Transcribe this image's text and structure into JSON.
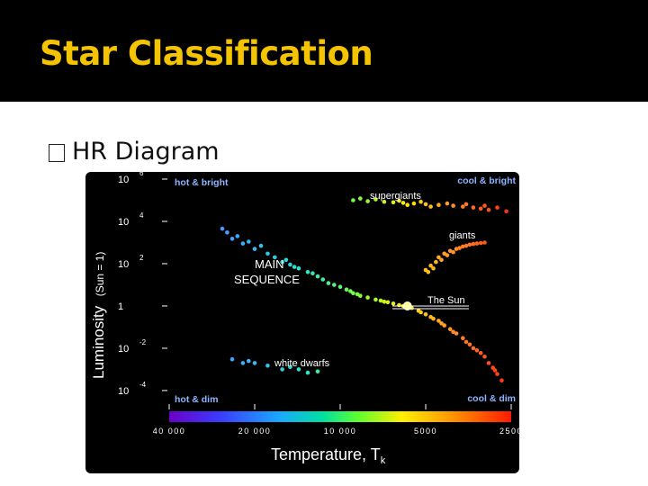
{
  "slide": {
    "title": "Star Classification",
    "bullet": "HR Diagram"
  },
  "colors": {
    "title_bar": "#000000",
    "title_text": "#f5c400",
    "chart_bg": "#000000",
    "corner_label": "#8fb4ff"
  },
  "chart_data": {
    "type": "scatter",
    "xlabel": "Temperature, T",
    "xlabel_sub": "k",
    "ylabel": "Luminosity",
    "ylabel_note": "(Sun = 1)",
    "x_scale": "log-reversed",
    "y_scale": "log",
    "xlim": [
      40000,
      2500
    ],
    "ylim": [
      5e-05,
      1000000
    ],
    "x_ticks": [
      {
        "value": 40000,
        "label": "40 000"
      },
      {
        "value": 20000,
        "label": "20 000"
      },
      {
        "value": 10000,
        "label": "10 000"
      },
      {
        "value": 5000,
        "label": "5000"
      },
      {
        "value": 2500,
        "label": "2500"
      }
    ],
    "y_ticks": [
      {
        "value": 1000000,
        "base": "10",
        "exp": "6"
      },
      {
        "value": 10000,
        "base": "10",
        "exp": "4"
      },
      {
        "value": 100,
        "base": "10",
        "exp": "2"
      },
      {
        "value": 1,
        "base": "1",
        "exp": ""
      },
      {
        "value": 0.01,
        "base": "10",
        "exp": "-2"
      },
      {
        "value": 0.0001,
        "base": "10",
        "exp": "-4"
      }
    ],
    "corner_labels": {
      "top_left": "hot & bright",
      "top_right": "cool & bright",
      "bottom_left": "hot & dim",
      "bottom_right": "cool & dim"
    },
    "annotations": {
      "supergiants": "supergiants",
      "giants": "giants",
      "main_sequence_line1": "MAIN",
      "main_sequence_line2": "SEQUENCE",
      "sun": "The Sun",
      "white_dwarfs": "white dwarfs"
    },
    "sun_point": {
      "x": 5800,
      "y": 1
    },
    "groups": [
      {
        "label": "main_sequence",
        "points": [
          [
            25000,
            3000
          ],
          [
            24000,
            1500
          ],
          [
            22000,
            900
          ],
          [
            20000,
            500
          ],
          [
            18000,
            300
          ],
          [
            17000,
            200
          ],
          [
            16000,
            120
          ],
          [
            15000,
            90
          ],
          [
            14000,
            60
          ],
          [
            13000,
            40
          ],
          [
            12000,
            25
          ],
          [
            11500,
            18
          ],
          [
            11000,
            12
          ],
          [
            10000,
            8
          ],
          [
            9500,
            6
          ],
          [
            9000,
            4
          ],
          [
            8500,
            3
          ],
          [
            8000,
            2.5
          ],
          [
            7500,
            2
          ],
          [
            7000,
            1.6
          ],
          [
            6500,
            1.3
          ],
          [
            6200,
            1.1
          ],
          [
            6000,
            1
          ],
          [
            5600,
            0.8
          ],
          [
            5300,
            0.6
          ],
          [
            5000,
            0.4
          ],
          [
            4800,
            0.3
          ],
          [
            4500,
            0.2
          ],
          [
            4300,
            0.12
          ],
          [
            4100,
            0.08
          ],
          [
            3900,
            0.05
          ],
          [
            3700,
            0.03
          ],
          [
            3500,
            0.015
          ],
          [
            3300,
            0.008
          ],
          [
            3100,
            0.004
          ],
          [
            3000,
            0.002
          ],
          [
            2900,
            0.0012
          ],
          [
            2800,
            0.0006
          ],
          [
            2700,
            0.0003
          ],
          [
            23000,
            2000
          ],
          [
            19000,
            700
          ],
          [
            15500,
            150
          ],
          [
            12500,
            35
          ],
          [
            10500,
            10
          ],
          [
            8700,
            3.6
          ],
          [
            7200,
            1.8
          ],
          [
            5800,
            0.9
          ],
          [
            4700,
            0.25
          ],
          [
            4000,
            0.06
          ],
          [
            3400,
            0.01
          ],
          [
            26000,
            4500
          ],
          [
            21000,
            1100
          ],
          [
            14500,
            70
          ],
          [
            9200,
            5
          ],
          [
            6800,
            1.5
          ],
          [
            5200,
            0.5
          ],
          [
            4400,
            0.15
          ],
          [
            3600,
            0.02
          ],
          [
            3200,
            0.006
          ],
          [
            2850,
            0.0009
          ]
        ]
      },
      {
        "label": "giants",
        "points": [
          [
            5000,
            50
          ],
          [
            4800,
            80
          ],
          [
            4600,
            120
          ],
          [
            4500,
            200
          ],
          [
            4300,
            300
          ],
          [
            4100,
            400
          ],
          [
            3900,
            500
          ],
          [
            3700,
            650
          ],
          [
            3500,
            800
          ],
          [
            3300,
            900
          ],
          [
            3100,
            1000
          ],
          [
            4700,
            60
          ],
          [
            4400,
            150
          ],
          [
            4000,
            350
          ],
          [
            3600,
            700
          ],
          [
            3200,
            950
          ],
          [
            4900,
            40
          ],
          [
            4200,
            250
          ],
          [
            3800,
            550
          ],
          [
            3400,
            850
          ]
        ]
      },
      {
        "label": "supergiants",
        "points": [
          [
            9000,
            100000
          ],
          [
            8000,
            90000
          ],
          [
            7000,
            85000
          ],
          [
            6500,
            80000
          ],
          [
            6000,
            75000
          ],
          [
            5500,
            70000
          ],
          [
            5000,
            65000
          ],
          [
            4500,
            60000
          ],
          [
            4000,
            55000
          ],
          [
            3700,
            50000
          ],
          [
            3400,
            45000
          ],
          [
            3200,
            40000
          ],
          [
            3000,
            35000
          ],
          [
            8500,
            120000
          ],
          [
            7500,
            110000
          ],
          [
            6200,
            95000
          ],
          [
            5200,
            85000
          ],
          [
            4200,
            70000
          ],
          [
            3600,
            65000
          ],
          [
            3100,
            55000
          ],
          [
            2800,
            45000
          ],
          [
            2600,
            30000
          ],
          [
            5800,
            60000
          ],
          [
            4800,
            50000
          ]
        ]
      },
      {
        "label": "white_dwarfs",
        "points": [
          [
            24000,
            0.003
          ],
          [
            22000,
            0.002
          ],
          [
            20000,
            0.002
          ],
          [
            18000,
            0.0015
          ],
          [
            16000,
            0.001
          ],
          [
            14000,
            0.001
          ],
          [
            12000,
            0.0008
          ],
          [
            21000,
            0.0025
          ],
          [
            15000,
            0.0013
          ],
          [
            13000,
            0.0007
          ]
        ]
      }
    ]
  }
}
